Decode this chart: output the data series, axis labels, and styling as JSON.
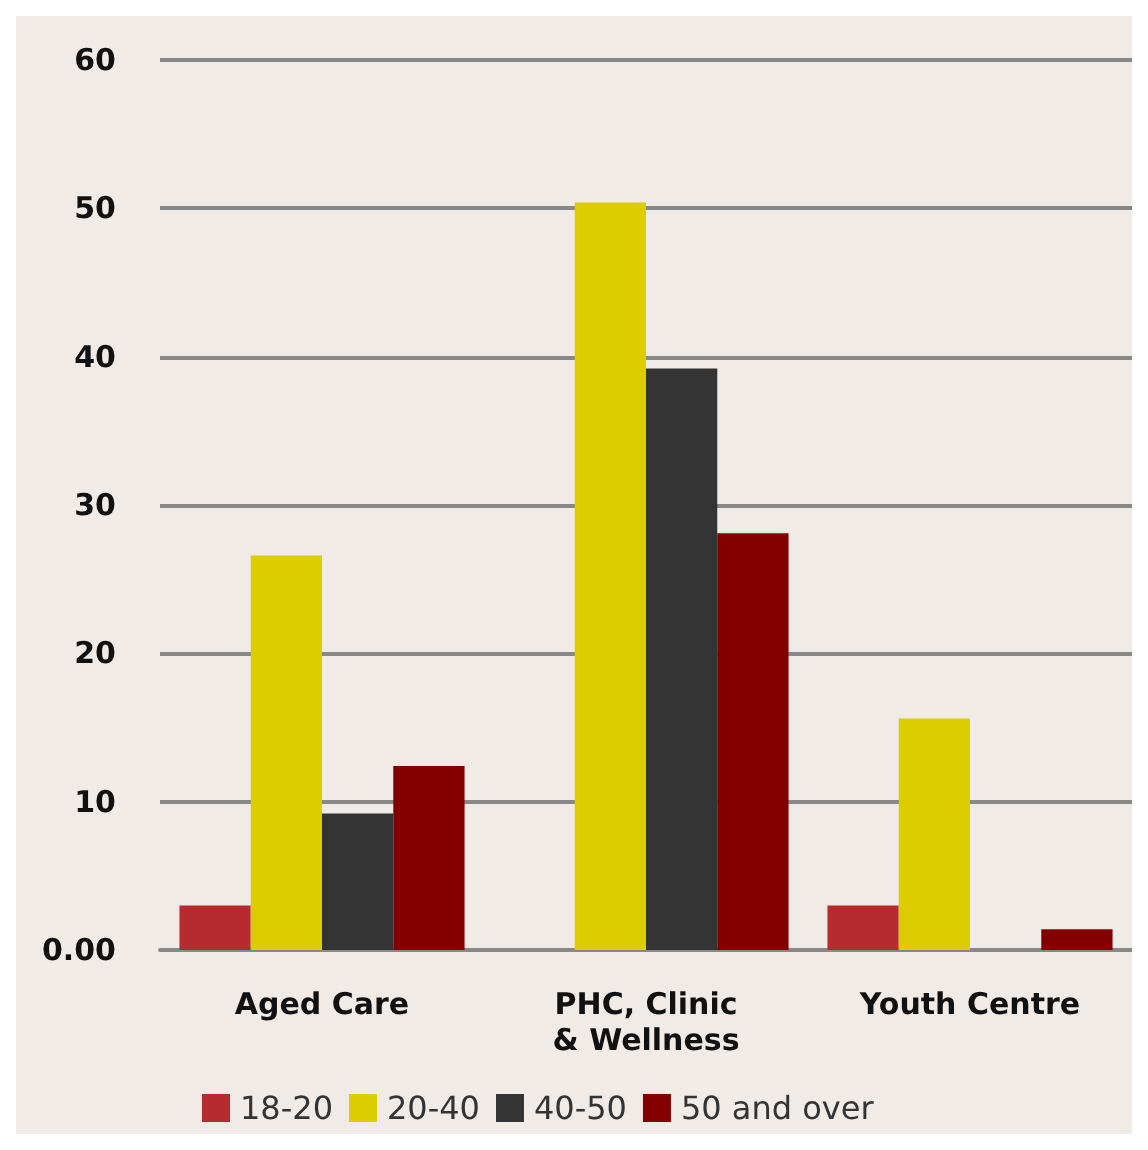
{
  "chart_data": {
    "type": "bar",
    "categories": [
      "Aged Care",
      "PHC, Clinic\n& Wellness",
      "Youth Centre"
    ],
    "series": [
      {
        "name": "18-20",
        "color": "#b72a30",
        "values": [
          3.0,
          null,
          3.0
        ]
      },
      {
        "name": "20-40",
        "color": "#dccc00",
        "values": [
          26.6,
          50.4,
          15.6
        ]
      },
      {
        "name": "40-50",
        "color": "#343434",
        "values": [
          9.2,
          39.2,
          null
        ]
      },
      {
        "name": "50 and over",
        "color": "#840000",
        "values": [
          12.4,
          28.1,
          1.4
        ]
      }
    ],
    "ylim": [
      0,
      60
    ],
    "yticks": [
      {
        "value": 0,
        "label": "0.00"
      },
      10,
      20,
      30,
      40,
      50,
      60
    ],
    "grid": "y",
    "legend": "bottom"
  }
}
